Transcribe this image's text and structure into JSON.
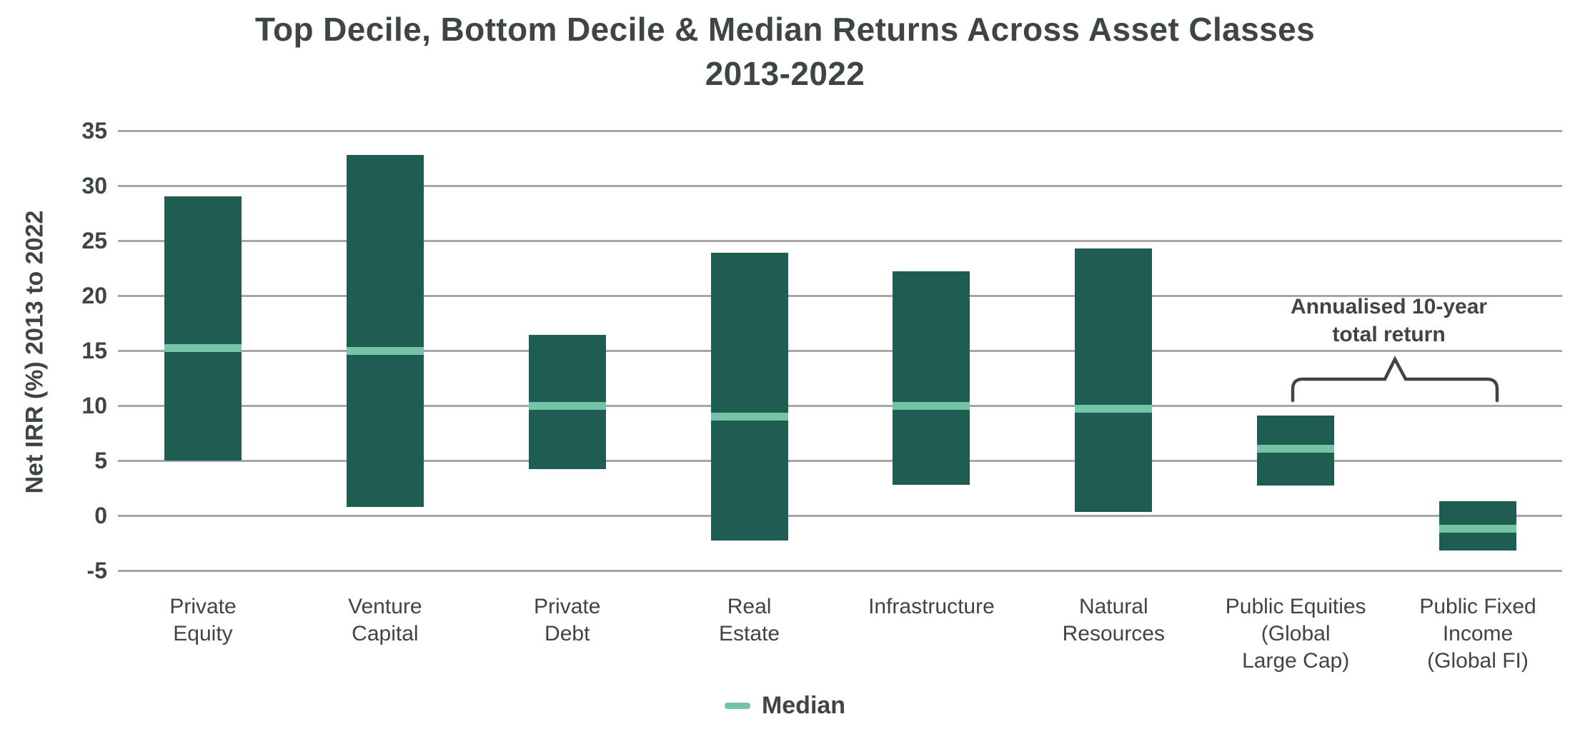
{
  "chart_data": {
    "type": "bar",
    "subtype": "floating-range-bar",
    "title": "Top Decile, Bottom Decile & Median Returns Across Asset Classes",
    "subtitle": "2013-2022",
    "ylabel": "Net IRR (%) 2013 to 2022",
    "ylim": [
      -5,
      35
    ],
    "yticks": [
      35,
      30,
      25,
      20,
      15,
      10,
      5,
      0,
      -5
    ],
    "grid": "horizontal",
    "categories": [
      "Private\nEquity",
      "Venture\nCapital",
      "Private\nDebt",
      "Real\nEstate",
      "Infrastructure",
      "Natural\nResources",
      "Public Equities\n(Global\nLarge Cap)",
      "Public Fixed\nIncome\n(Global FI)"
    ],
    "series": [
      {
        "name": "Bottom Decile",
        "values": [
          5.0,
          0.8,
          4.2,
          -2.3,
          2.8,
          0.3,
          2.7,
          -3.2
        ]
      },
      {
        "name": "Top Decile",
        "values": [
          29.0,
          32.8,
          16.4,
          23.9,
          22.2,
          24.3,
          9.1,
          1.3
        ]
      },
      {
        "name": "Median",
        "values": [
          15.2,
          15.0,
          10.0,
          9.0,
          10.0,
          9.7,
          6.1,
          -1.2
        ]
      }
    ],
    "legend": {
      "label": "Median",
      "position": "bottom-center"
    },
    "annotation": {
      "text": "Annualised 10-year\ntotal return",
      "applies_to": [
        "Public Equities (Global Large Cap)",
        "Public Fixed Income (Global FI)"
      ]
    },
    "colors": {
      "bar": "#1f5d53",
      "median": "#74c4a8",
      "gridline": "#a6a6a6",
      "text": "#3e4642"
    }
  }
}
